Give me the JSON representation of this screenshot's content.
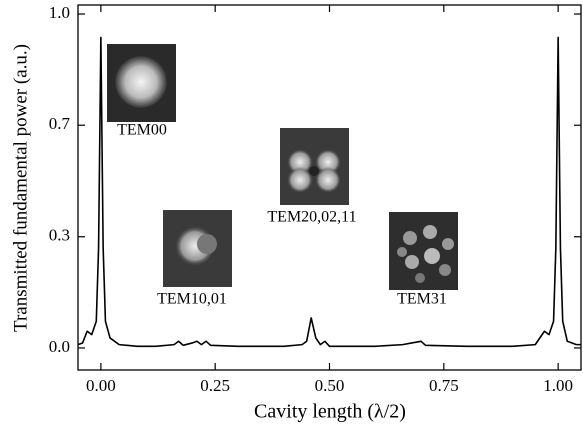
{
  "chart_data": {
    "type": "line",
    "xlabel": "Cavity length (λ/2)",
    "ylabel": "Transmitted fundamental power (a.u.)",
    "annotations": [
      "TEM00",
      "TEM10,01",
      "TEM20,02,11",
      "TEM31"
    ],
    "color": "#000000",
    "x": [
      -0.05,
      -0.04,
      -0.03,
      -0.02,
      -0.01,
      -0.005,
      0.0,
      0.005,
      0.01,
      0.02,
      0.04,
      0.08,
      0.12,
      0.16,
      0.17,
      0.18,
      0.2,
      0.21,
      0.22,
      0.23,
      0.24,
      0.3,
      0.4,
      0.44,
      0.45,
      0.46,
      0.47,
      0.48,
      0.49,
      0.5,
      0.6,
      0.66,
      0.68,
      0.7,
      0.71,
      0.8,
      0.9,
      0.95,
      0.97,
      0.98,
      0.99,
      0.995,
      1.0,
      1.005,
      1.01,
      1.02,
      1.04,
      1.05
    ],
    "values": [
      0.01,
      0.015,
      0.05,
      0.04,
      0.08,
      0.3,
      0.93,
      0.3,
      0.08,
      0.03,
      0.01,
      0.005,
      0.005,
      0.01,
      0.02,
      0.008,
      0.015,
      0.02,
      0.01,
      0.02,
      0.008,
      0.005,
      0.005,
      0.01,
      0.02,
      0.09,
      0.03,
      0.01,
      0.02,
      0.005,
      0.005,
      0.01,
      0.015,
      0.02,
      0.008,
      0.005,
      0.005,
      0.01,
      0.05,
      0.04,
      0.08,
      0.3,
      0.93,
      0.3,
      0.08,
      0.02,
      0.01,
      0.01
    ],
    "xlim": [
      -0.05,
      1.05
    ],
    "ylim": [
      -0.066,
      1.027
    ],
    "xticks": [
      {
        "value": 0,
        "label": "0.00"
      },
      {
        "value": 0.25,
        "label": "0.25"
      },
      {
        "value": 0.5,
        "label": "0.50"
      },
      {
        "value": 0.75,
        "label": "0.75"
      },
      {
        "value": 1,
        "label": "1.00"
      }
    ],
    "yticks": [
      {
        "value": 0,
        "label": "0.0"
      },
      {
        "value": 0.333,
        "label": "0.3"
      },
      {
        "value": 0.667,
        "label": "0.7"
      },
      {
        "value": 1,
        "label": "1.0"
      }
    ]
  }
}
